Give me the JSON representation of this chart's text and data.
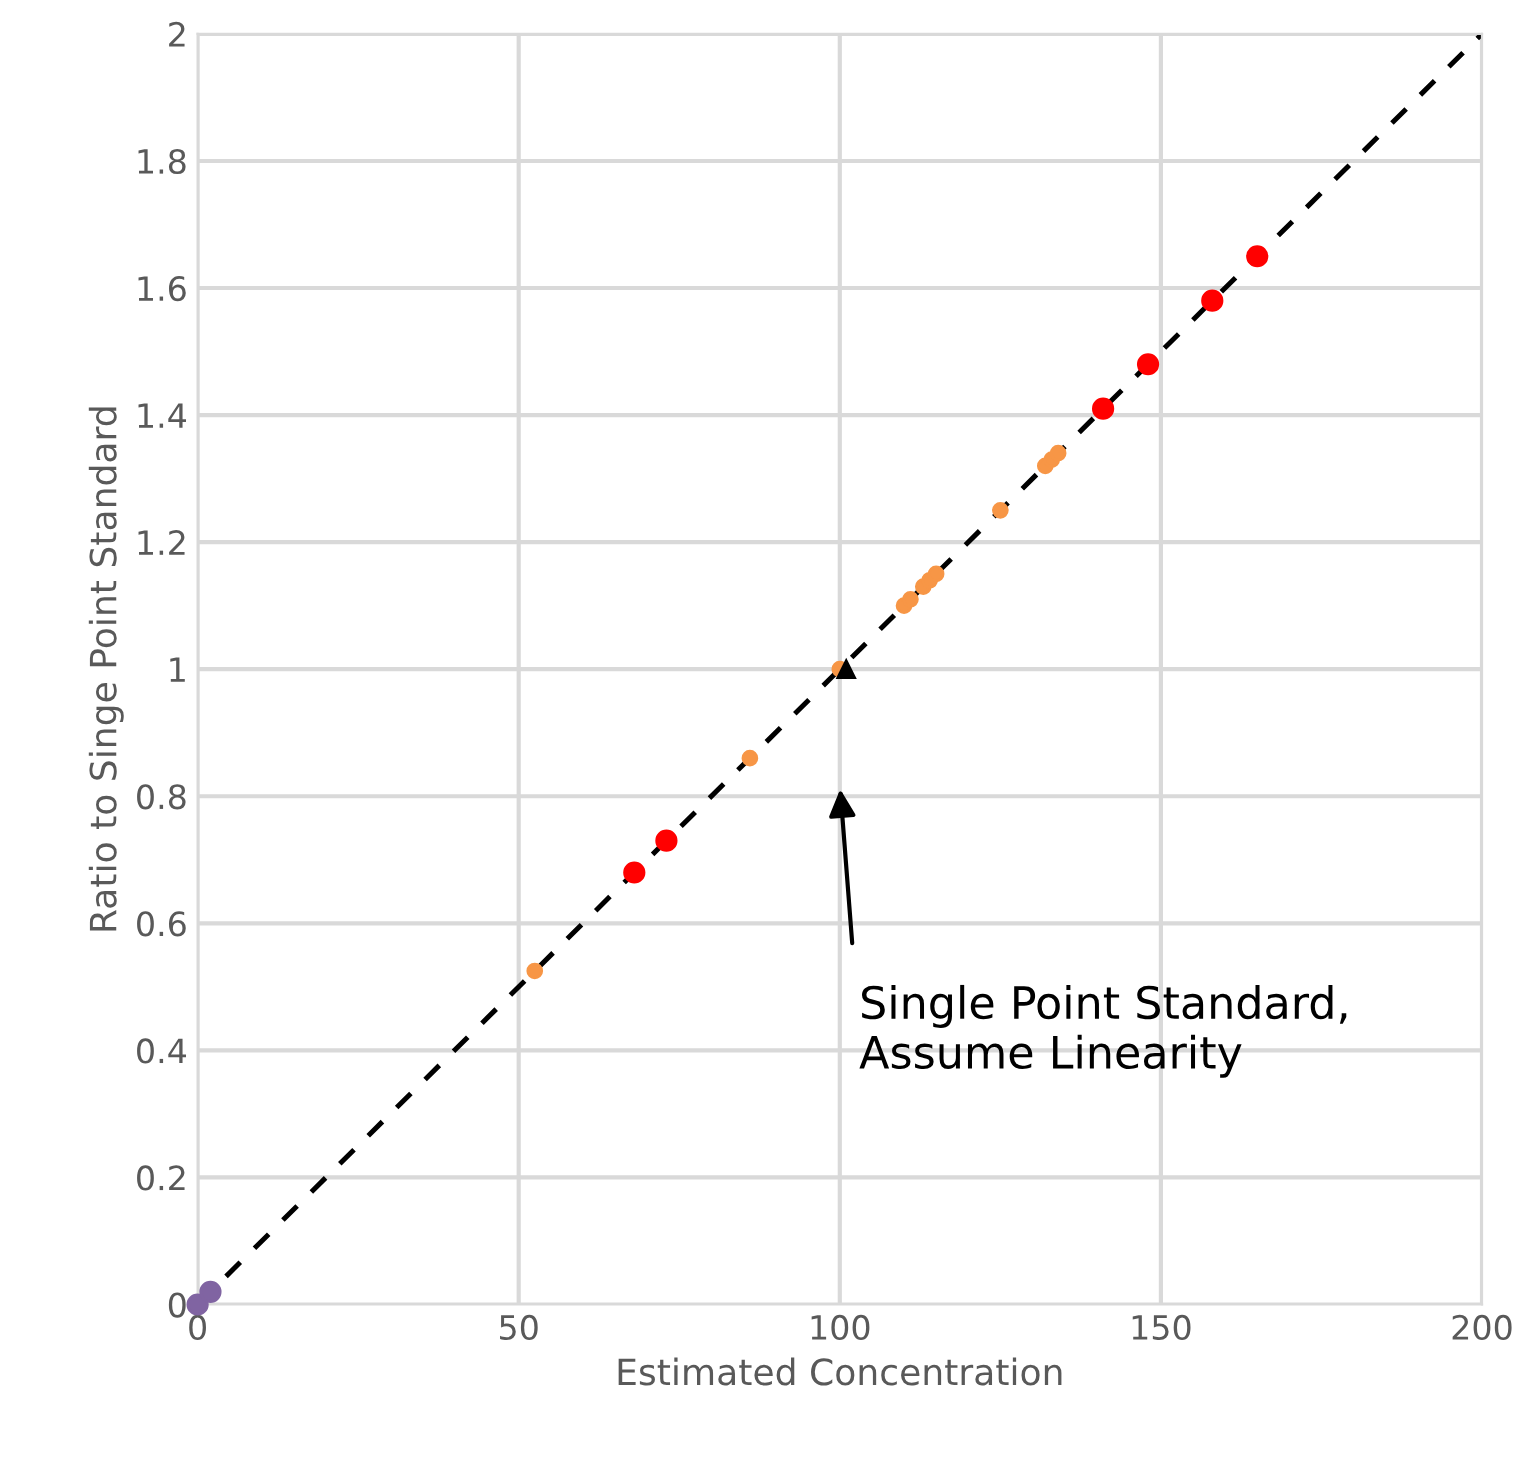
{
  "chart_data": {
    "type": "scatter",
    "xlabel": "Estimated Concentration",
    "ylabel": "Ratio to Singe Point Standard",
    "xlim": [
      0,
      200
    ],
    "ylim": [
      0,
      2
    ],
    "xticks": [
      0,
      50,
      100,
      150,
      200
    ],
    "yticks": [
      0,
      0.2,
      0.4,
      0.6,
      0.8,
      1,
      1.2,
      1.4,
      1.6,
      1.8,
      2
    ],
    "grid": true,
    "legend": false,
    "series": [
      {
        "type": "line",
        "color": "#000000",
        "line_style": "dashed",
        "marker": "none",
        "x": [
          0,
          200
        ],
        "values": [
          0,
          2
        ]
      },
      {
        "color": "#ff0000",
        "marker": "circle",
        "x": [
          68,
          73,
          141,
          148,
          158,
          165
        ],
        "values": [
          0.68,
          0.73,
          1.41,
          1.48,
          1.58,
          1.65
        ]
      },
      {
        "color": "#f79646",
        "marker": "circle",
        "x": [
          52.5,
          86,
          100,
          110,
          111,
          113,
          114,
          115,
          125,
          132,
          133,
          134
        ],
        "values": [
          0.525,
          0.86,
          1.0,
          1.1,
          1.11,
          1.13,
          1.14,
          1.15,
          1.25,
          1.32,
          1.33,
          1.34
        ]
      },
      {
        "color": "#8064a2",
        "marker": "circle",
        "x": [
          0,
          2
        ],
        "values": [
          0,
          0.02
        ]
      },
      {
        "color": "#000000",
        "marker": "triangle",
        "x": [
          101
        ],
        "values": [
          1.0
        ]
      }
    ],
    "annotations": [
      "Single Point Standard,\nAssume Linearity"
    ]
  }
}
